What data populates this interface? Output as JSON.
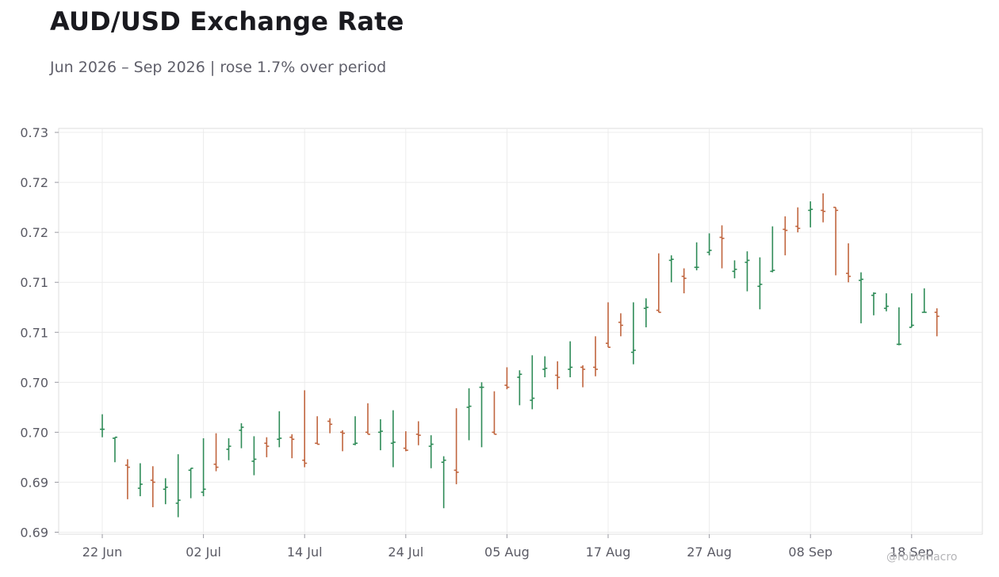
{
  "header": {
    "title": "AUD/USD Exchange Rate",
    "subtitle": "Jun 2026 – Sep 2026 | rose 1.7% over period"
  },
  "watermark": "@robomacro",
  "colors": {
    "up": "#2e8b57",
    "down": "#c0653e",
    "grid": "#ececec",
    "frame": "#dedede"
  },
  "chart_data": {
    "type": "ohlc",
    "title": "AUD/USD Exchange Rate",
    "subtitle": "Jun 2026 – Sep 2026 | rose 1.7% over period",
    "xlabel": "",
    "ylabel": "",
    "ylim": [
      0.6898,
      0.7304
    ],
    "grid": true,
    "x_ticks": [
      "22 Jun",
      "02 Jul",
      "14 Jul",
      "24 Jul",
      "05 Aug",
      "17 Aug",
      "27 Aug",
      "08 Sep",
      "18 Sep"
    ],
    "y_ticks": [
      0.69,
      0.695,
      0.7,
      0.705,
      0.71,
      0.715,
      0.72,
      0.725,
      0.73
    ],
    "y_tick_labels": [
      "0.69",
      "0.69",
      "0.70",
      "0.70",
      "0.71",
      "0.71",
      "0.72",
      "0.72",
      "0.73"
    ],
    "series": [
      {
        "date": "22 Jun",
        "open": 0.7003,
        "high": 0.7018,
        "low": 0.6995,
        "close": 0.7003
      },
      {
        "date": "23 Jun",
        "open": 0.6994,
        "high": 0.6995,
        "low": 0.697,
        "close": 0.6995
      },
      {
        "date": "24 Jun",
        "open": 0.6967,
        "high": 0.6973,
        "low": 0.6933,
        "close": 0.6965
      },
      {
        "date": "25 Jun",
        "open": 0.6944,
        "high": 0.6969,
        "low": 0.6936,
        "close": 0.6948
      },
      {
        "date": "26 Jun",
        "open": 0.6952,
        "high": 0.6966,
        "low": 0.6925,
        "close": 0.695
      },
      {
        "date": "29 Jun",
        "open": 0.6943,
        "high": 0.6954,
        "low": 0.6928,
        "close": 0.6945
      },
      {
        "date": "30 Jun",
        "open": 0.6929,
        "high": 0.6978,
        "low": 0.6915,
        "close": 0.6932
      },
      {
        "date": "01 Jul",
        "open": 0.6962,
        "high": 0.6964,
        "low": 0.6934,
        "close": 0.6964
      },
      {
        "date": "02 Jul",
        "open": 0.694,
        "high": 0.6994,
        "low": 0.6936,
        "close": 0.6943
      },
      {
        "date": "03 Jul",
        "open": 0.6968,
        "high": 0.6999,
        "low": 0.6961,
        "close": 0.6965
      },
      {
        "date": "06 Jul",
        "open": 0.6983,
        "high": 0.6994,
        "low": 0.6972,
        "close": 0.6986
      },
      {
        "date": "07 Jul",
        "open": 0.7002,
        "high": 0.7009,
        "low": 0.6984,
        "close": 0.7005
      },
      {
        "date": "08 Jul",
        "open": 0.6971,
        "high": 0.6996,
        "low": 0.6957,
        "close": 0.6973
      },
      {
        "date": "09 Jul",
        "open": 0.6989,
        "high": 0.6995,
        "low": 0.6975,
        "close": 0.6986
      },
      {
        "date": "10 Jul",
        "open": 0.6993,
        "high": 0.7021,
        "low": 0.6985,
        "close": 0.6994
      },
      {
        "date": "13 Jul",
        "open": 0.6995,
        "high": 0.6998,
        "low": 0.6974,
        "close": 0.6993
      },
      {
        "date": "14 Jul",
        "open": 0.6972,
        "high": 0.7042,
        "low": 0.6965,
        "close": 0.6969
      },
      {
        "date": "15 Jul",
        "open": 0.6989,
        "high": 0.7016,
        "low": 0.6988,
        "close": 0.6988
      },
      {
        "date": "16 Jul",
        "open": 0.7011,
        "high": 0.7014,
        "low": 0.6999,
        "close": 0.7008
      },
      {
        "date": "17 Jul",
        "open": 0.7,
        "high": 0.7002,
        "low": 0.6981,
        "close": 0.6999
      },
      {
        "date": "20 Jul",
        "open": 0.6988,
        "high": 0.7016,
        "low": 0.6987,
        "close": 0.6989
      },
      {
        "date": "21 Jul",
        "open": 0.7,
        "high": 0.7029,
        "low": 0.6999,
        "close": 0.6998
      },
      {
        "date": "22 Jul",
        "open": 0.7,
        "high": 0.7013,
        "low": 0.6982,
        "close": 0.7001
      },
      {
        "date": "23 Jul",
        "open": 0.6989,
        "high": 0.7022,
        "low": 0.6965,
        "close": 0.699
      },
      {
        "date": "24 Jul",
        "open": 0.6984,
        "high": 0.7001,
        "low": 0.6981,
        "close": 0.6982
      },
      {
        "date": "27 Jul",
        "open": 0.6998,
        "high": 0.7011,
        "low": 0.6987,
        "close": 0.6997
      },
      {
        "date": "28 Jul",
        "open": 0.6986,
        "high": 0.6997,
        "low": 0.6964,
        "close": 0.6988
      },
      {
        "date": "29 Jul",
        "open": 0.697,
        "high": 0.6976,
        "low": 0.6924,
        "close": 0.6972
      },
      {
        "date": "30 Jul",
        "open": 0.6962,
        "high": 0.7024,
        "low": 0.6948,
        "close": 0.696
      },
      {
        "date": "31 Jul",
        "open": 0.7025,
        "high": 0.7044,
        "low": 0.6992,
        "close": 0.7026
      },
      {
        "date": "03 Aug",
        "open": 0.7045,
        "high": 0.705,
        "low": 0.6985,
        "close": 0.7045
      },
      {
        "date": "04 Aug",
        "open": 0.7,
        "high": 0.7041,
        "low": 0.6999,
        "close": 0.6998
      },
      {
        "date": "05 Aug",
        "open": 0.7047,
        "high": 0.7065,
        "low": 0.7043,
        "close": 0.7045
      },
      {
        "date": "06 Aug",
        "open": 0.7055,
        "high": 0.7062,
        "low": 0.7027,
        "close": 0.7058
      },
      {
        "date": "07 Aug",
        "open": 0.7032,
        "high": 0.7077,
        "low": 0.7023,
        "close": 0.7034
      },
      {
        "date": "10 Aug",
        "open": 0.7063,
        "high": 0.7076,
        "low": 0.7055,
        "close": 0.7064
      },
      {
        "date": "11 Aug",
        "open": 0.7057,
        "high": 0.7071,
        "low": 0.7043,
        "close": 0.7055
      },
      {
        "date": "12 Aug",
        "open": 0.7063,
        "high": 0.7091,
        "low": 0.7055,
        "close": 0.7065
      },
      {
        "date": "13 Aug",
        "open": 0.7065,
        "high": 0.7067,
        "low": 0.7045,
        "close": 0.7063
      },
      {
        "date": "14 Aug",
        "open": 0.7065,
        "high": 0.7096,
        "low": 0.7056,
        "close": 0.7063
      },
      {
        "date": "17 Aug",
        "open": 0.7089,
        "high": 0.713,
        "low": 0.7085,
        "close": 0.7085
      },
      {
        "date": "18 Aug",
        "open": 0.711,
        "high": 0.7119,
        "low": 0.7096,
        "close": 0.7107
      },
      {
        "date": "19 Aug",
        "open": 0.708,
        "high": 0.713,
        "low": 0.7068,
        "close": 0.7082
      },
      {
        "date": "20 Aug",
        "open": 0.7124,
        "high": 0.7134,
        "low": 0.7105,
        "close": 0.7125
      },
      {
        "date": "21 Aug",
        "open": 0.7122,
        "high": 0.7179,
        "low": 0.712,
        "close": 0.712
      },
      {
        "date": "24 Aug",
        "open": 0.7172,
        "high": 0.7177,
        "low": 0.715,
        "close": 0.7173
      },
      {
        "date": "25 Aug",
        "open": 0.7156,
        "high": 0.7164,
        "low": 0.7139,
        "close": 0.7154
      },
      {
        "date": "26 Aug",
        "open": 0.7165,
        "high": 0.719,
        "low": 0.7162,
        "close": 0.7165
      },
      {
        "date": "27 Aug",
        "open": 0.718,
        "high": 0.7199,
        "low": 0.7177,
        "close": 0.7182
      },
      {
        "date": "28 Aug",
        "open": 0.7195,
        "high": 0.7207,
        "low": 0.7164,
        "close": 0.7194
      },
      {
        "date": "31 Aug",
        "open": 0.7161,
        "high": 0.7172,
        "low": 0.7154,
        "close": 0.7163
      },
      {
        "date": "01 Sep",
        "open": 0.717,
        "high": 0.7181,
        "low": 0.7141,
        "close": 0.7172
      },
      {
        "date": "02 Sep",
        "open": 0.7146,
        "high": 0.7175,
        "low": 0.7123,
        "close": 0.7148
      },
      {
        "date": "03 Sep",
        "open": 0.7161,
        "high": 0.7206,
        "low": 0.716,
        "close": 0.7162
      },
      {
        "date": "04 Sep",
        "open": 0.7203,
        "high": 0.7216,
        "low": 0.7177,
        "close": 0.7202
      },
      {
        "date": "07 Sep",
        "open": 0.7206,
        "high": 0.7225,
        "low": 0.72,
        "close": 0.7204
      },
      {
        "date": "08 Sep",
        "open": 0.7222,
        "high": 0.7231,
        "low": 0.7205,
        "close": 0.7223
      },
      {
        "date": "09 Sep",
        "open": 0.7222,
        "high": 0.7239,
        "low": 0.721,
        "close": 0.7221
      },
      {
        "date": "10 Sep",
        "open": 0.7225,
        "high": 0.7224,
        "low": 0.7157,
        "close": 0.7222
      },
      {
        "date": "11 Sep",
        "open": 0.7159,
        "high": 0.7189,
        "low": 0.715,
        "close": 0.7156
      },
      {
        "date": "14 Sep",
        "open": 0.7152,
        "high": 0.716,
        "low": 0.7109,
        "close": 0.7153
      },
      {
        "date": "15 Sep",
        "open": 0.7137,
        "high": 0.714,
        "low": 0.7117,
        "close": 0.7139
      },
      {
        "date": "16 Sep",
        "open": 0.7124,
        "high": 0.7139,
        "low": 0.7121,
        "close": 0.7126
      },
      {
        "date": "17 Sep",
        "open": 0.7088,
        "high": 0.7125,
        "low": 0.7087,
        "close": 0.7088
      },
      {
        "date": "18 Sep",
        "open": 0.7105,
        "high": 0.7139,
        "low": 0.7106,
        "close": 0.7107
      },
      {
        "date": "21 Sep",
        "open": 0.712,
        "high": 0.7144,
        "low": 0.712,
        "close": 0.712
      },
      {
        "date": "22 Sep",
        "open": 0.712,
        "high": 0.7124,
        "low": 0.7096,
        "close": 0.7116
      }
    ]
  }
}
